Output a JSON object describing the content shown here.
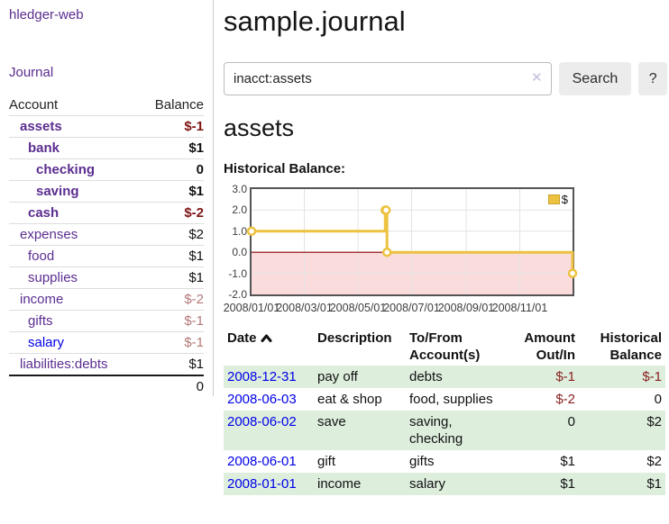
{
  "app": {
    "title": "hledger-web"
  },
  "sidebar": {
    "journal_link": "Journal",
    "accounts": {
      "headers": {
        "account": "Account",
        "balance": "Balance"
      },
      "rows": [
        {
          "name": "assets",
          "balance": "$-1"
        },
        {
          "name": "bank",
          "balance": "$1"
        },
        {
          "name": "checking",
          "balance": "0"
        },
        {
          "name": "saving",
          "balance": "$1"
        },
        {
          "name": "cash",
          "balance": "$-2"
        },
        {
          "name": "expenses",
          "balance": "$2"
        },
        {
          "name": "food",
          "balance": "$1"
        },
        {
          "name": "supplies",
          "balance": "$1"
        },
        {
          "name": "income",
          "balance": "$-2"
        },
        {
          "name": "gifts",
          "balance": "$-1"
        },
        {
          "name": "salary",
          "balance": "$-1"
        },
        {
          "name": "liabilities:debts",
          "balance": "$1"
        }
      ],
      "total": "0"
    }
  },
  "main": {
    "title": "sample.journal",
    "search": {
      "value": "inacct:assets",
      "clear_icon": "✕",
      "button_label": "Search",
      "help_label": "?"
    },
    "account_heading": "assets",
    "chart_heading": "Historical Balance:"
  },
  "chart_data": {
    "type": "line",
    "step": true,
    "title": "Historical Balance:",
    "series": [
      {
        "name": "$",
        "color": "#edc240",
        "points": [
          [
            "2008-01-01",
            1
          ],
          [
            "2008-06-01",
            2
          ],
          [
            "2008-06-02",
            2
          ],
          [
            "2008-06-03",
            0
          ],
          [
            "2008-12-31",
            -1
          ]
        ]
      }
    ],
    "xlim": [
      "2008-01-01",
      "2008-12-31"
    ],
    "ylim": [
      -2,
      3
    ],
    "yticks": [
      "3.0",
      "2.0",
      "1.0",
      "0.0",
      "-1.0",
      "-2.0"
    ],
    "xticks": [
      {
        "label": "2008/01/01",
        "date": "2008-01-01"
      },
      {
        "label": "2008/03/01",
        "date": "2008-03-01"
      },
      {
        "label": "2008/05/01",
        "date": "2008-05-01"
      },
      {
        "label": "2008/07/01",
        "date": "2008-07-01"
      },
      {
        "label": "2008/09/01",
        "date": "2008-09-01"
      },
      {
        "label": "2008/11/01",
        "date": "2008-11-01"
      }
    ],
    "legend": {
      "label": "$",
      "position": "top-right"
    },
    "grid": true,
    "grid_color": "#e4e4e4",
    "zero_line_color": "#8b0000",
    "negative_region_color": "#fbdcdc"
  },
  "register": {
    "headers": {
      "date": "Date",
      "description": "Description",
      "accounts": "To/From Account(s)",
      "amount": "Amount Out/In",
      "balance": "Historical Balance"
    },
    "rows": [
      {
        "date": "2008-12-31",
        "description": "pay off",
        "accounts": "debts",
        "amount": "$-1",
        "balance": "$-1"
      },
      {
        "date": "2008-06-03",
        "description": "eat & shop",
        "accounts": "food, supplies",
        "amount": "$-2",
        "balance": "0"
      },
      {
        "date": "2008-06-02",
        "description": "save",
        "accounts": "saving, checking",
        "amount": "0",
        "balance": "$2"
      },
      {
        "date": "2008-06-01",
        "description": "gift",
        "accounts": "gifts",
        "amount": "$1",
        "balance": "$2"
      },
      {
        "date": "2008-01-01",
        "description": "income",
        "accounts": "salary",
        "amount": "$1",
        "balance": "$1"
      }
    ]
  }
}
